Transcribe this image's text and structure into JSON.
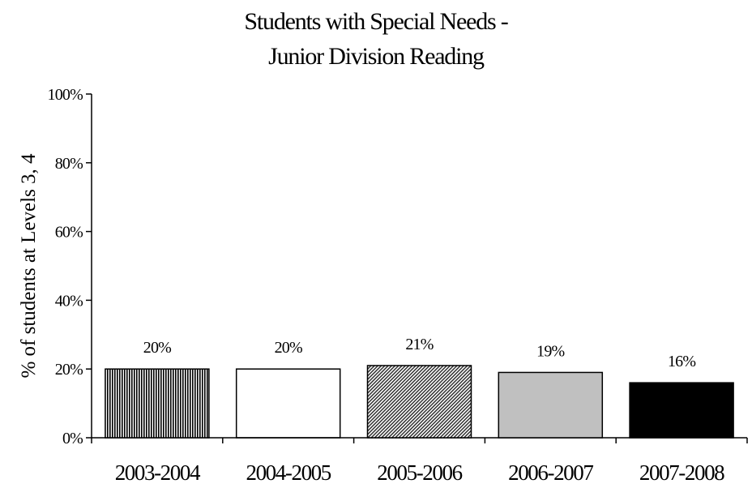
{
  "chart_data": {
    "type": "bar",
    "title": [
      "Students with Special Needs -",
      "Junior Division Reading"
    ],
    "xlabel": "",
    "ylabel": "% of students at Levels 3, 4",
    "categories": [
      "2003-2004",
      "2004-2005",
      "2005-2006",
      "2006-2007",
      "2007-2008"
    ],
    "values": [
      20,
      20,
      21,
      19,
      16
    ],
    "data_labels": [
      "20%",
      "20%",
      "21%",
      "19%",
      "16%"
    ],
    "ylim": [
      0,
      100
    ],
    "yticks": [
      0,
      20,
      40,
      60,
      80,
      100
    ],
    "ytick_labels": [
      "0%",
      "20%",
      "40%",
      "60%",
      "80%",
      "100%"
    ],
    "grid": false,
    "legend": "none",
    "bar_fills": [
      "vertical-stripes",
      "white",
      "diagonal-hatch",
      "#c0c0c0",
      "#000000"
    ]
  }
}
